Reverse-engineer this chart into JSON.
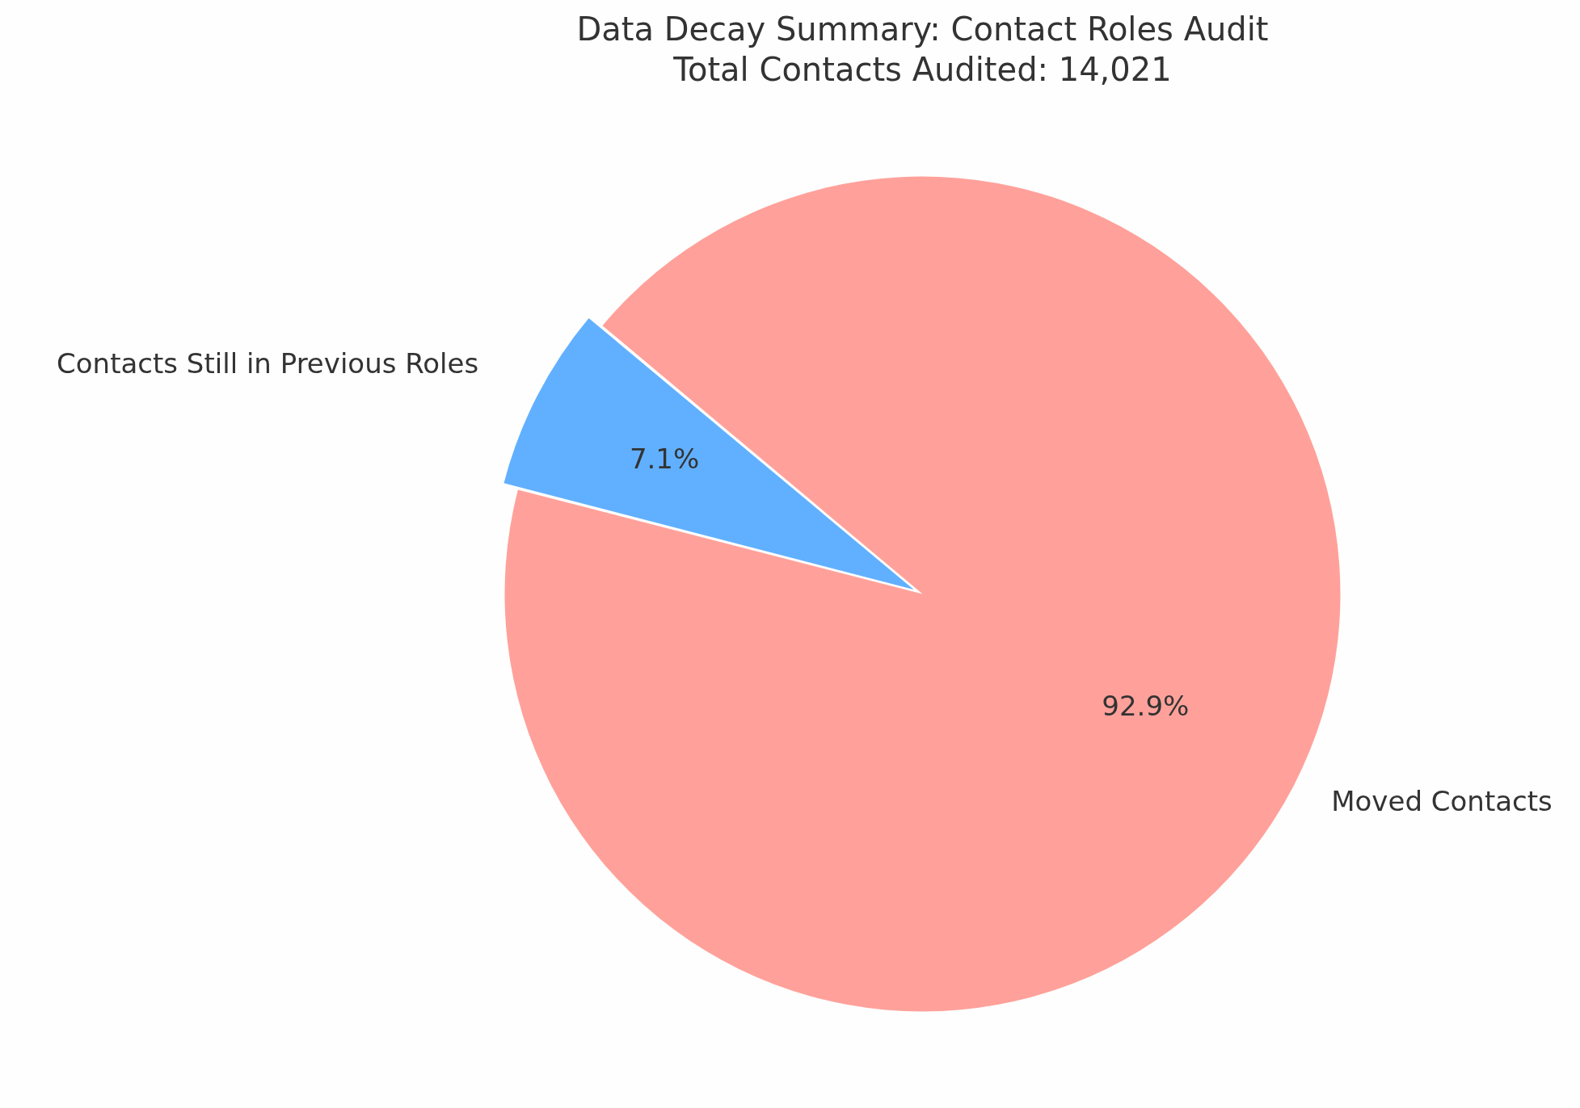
{
  "chart_data": {
    "type": "pie",
    "title": "Data Decay Summary: Contact Roles Audit",
    "subtitle": "Total Contacts Audited: 14,021",
    "categories": [
      "Contacts Still in Previous Roles",
      "Moved Contacts"
    ],
    "values": [
      7.1,
      92.9
    ],
    "colors": [
      "#61b0ff",
      "#ffa19a"
    ],
    "value_labels": [
      "7.1%",
      "92.9%"
    ]
  }
}
